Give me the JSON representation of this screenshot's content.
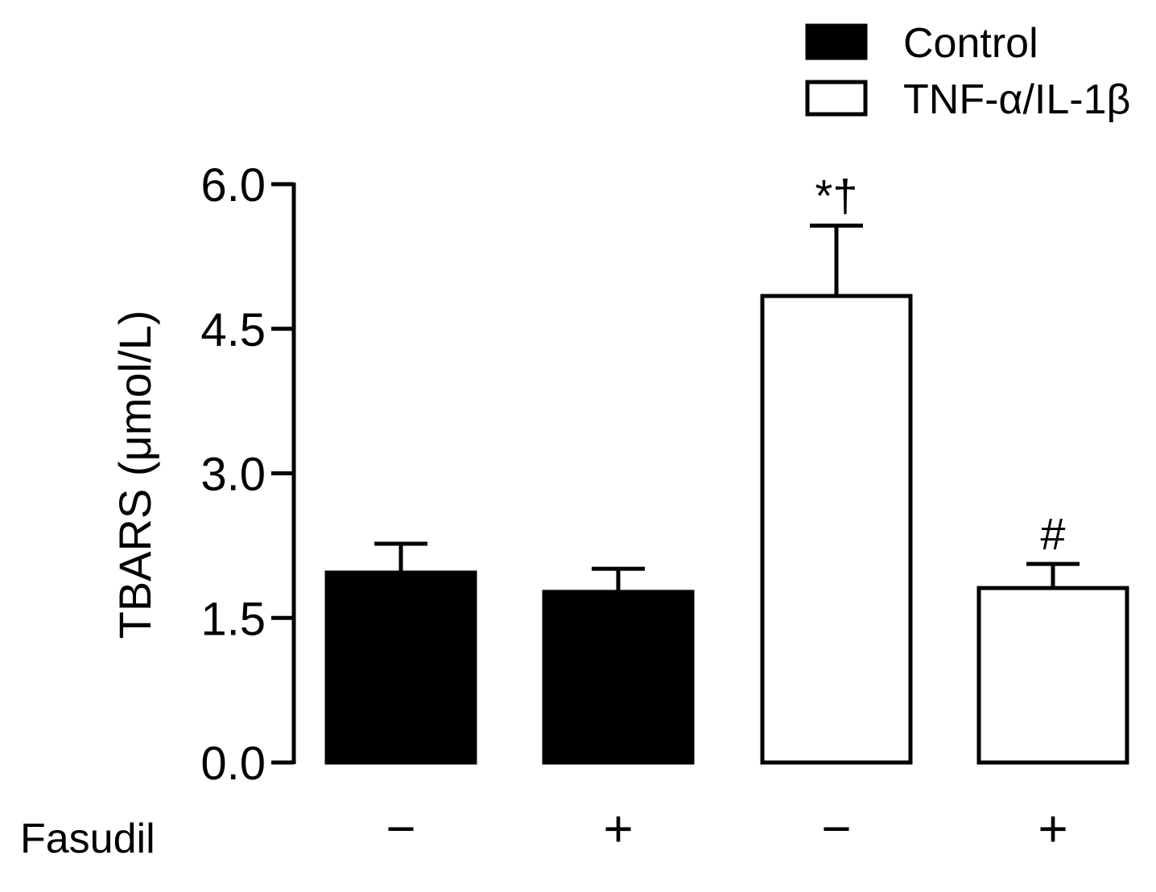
{
  "chart_data": {
    "type": "bar",
    "title": "",
    "xlabel": "",
    "ylabel": "TBARS (μmol/L)",
    "ylim": [
      0,
      6
    ],
    "yticks": [
      "0.0",
      "1.5",
      "3.0",
      "4.5",
      "6.0"
    ],
    "grid": false,
    "legend_position": "top-right",
    "legend": [
      {
        "name": "Control",
        "fill": "#000000"
      },
      {
        "name": "TNF-α/IL-1β",
        "fill": "#ffffff"
      }
    ],
    "row_label": "Fasudil",
    "bars": [
      {
        "group": "Control",
        "fasudil": "−",
        "value": 1.97,
        "error": 0.3,
        "annotation": ""
      },
      {
        "group": "Control",
        "fasudil": "+",
        "value": 1.77,
        "error": 0.24,
        "annotation": ""
      },
      {
        "group": "TNF-α/IL-1β",
        "fasudil": "−",
        "value": 4.84,
        "error": 0.73,
        "annotation": "*†"
      },
      {
        "group": "TNF-α/IL-1β",
        "fasudil": "+",
        "value": 1.81,
        "error": 0.25,
        "annotation": "#"
      }
    ],
    "colors": {
      "axis": "#000000",
      "control_fill": "#000000",
      "treated_fill": "#ffffff"
    }
  }
}
